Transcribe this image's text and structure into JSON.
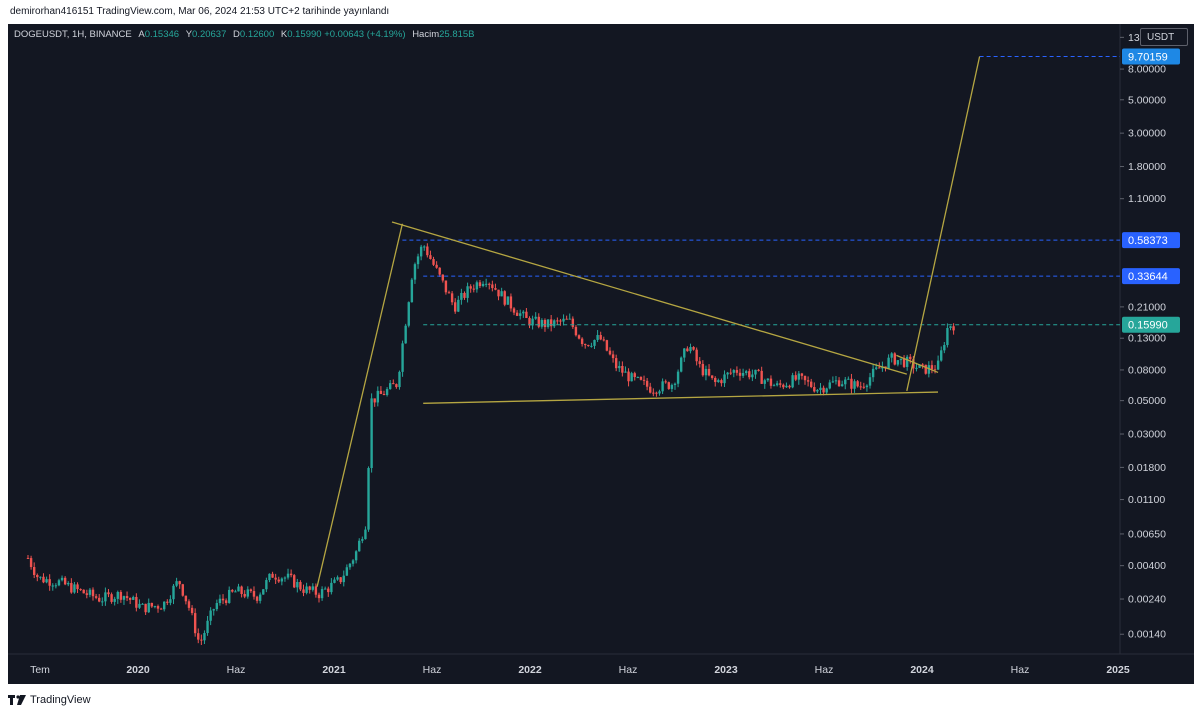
{
  "header": {
    "published_by": "demirorhan416151 TradingView.com, Mar 06, 2024 21:53 UTC+2 tarihinde yayınlandı"
  },
  "legend": {
    "symbol": "DOGEUSDT, 1H, BINANCE",
    "open_label": "A",
    "open": "0.15346",
    "high_label": "Y",
    "high": "0.20637",
    "low_label": "D",
    "low": "0.12600",
    "close_label": "K",
    "close": "0.15990",
    "change": "+0.00643 (+4.19%)",
    "volume_label": "Hacim",
    "volume": "25.815B"
  },
  "currency": "USDT",
  "footer": {
    "brand": "TradingView"
  },
  "colors": {
    "background": "#131722",
    "up": "#26a69a",
    "down": "#ef5350",
    "trendline": "#b5a642",
    "dashed": "#2962ff",
    "grid_text": "#d1d4dc"
  },
  "chart_data": {
    "type": "candlestick",
    "y_scale": "log",
    "ylim": [
      0.0011,
      15
    ],
    "y_ticks": [
      "13.00000",
      "8.00000",
      "5.00000",
      "3.00000",
      "1.80000",
      "1.10000",
      "0.21000",
      "0.13000",
      "0.08000",
      "0.05000",
      "0.03000",
      "0.01800",
      "0.01100",
      "0.00650",
      "0.00400",
      "0.00240",
      "0.00140"
    ],
    "x_ticks": [
      "Tem",
      "2020",
      "Haz",
      "2021",
      "Haz",
      "2022",
      "Haz",
      "2023",
      "Haz",
      "2024",
      "Haz",
      "2025"
    ],
    "x_ticks_bold": [
      "2020",
      "2021",
      "2022",
      "2023",
      "2024",
      "2025"
    ],
    "price_labels": [
      {
        "value": 9.70159,
        "text": "9.70159",
        "color": "#1e88e5"
      },
      {
        "value": 0.58373,
        "text": "0.58373",
        "color": "#2962ff"
      },
      {
        "value": 0.33644,
        "text": "0.33644",
        "color": "#2962ff"
      },
      {
        "value": 0.1599,
        "text": "0.15990",
        "color": "#26a69a"
      }
    ],
    "price_path": [
      [
        0.0,
        0.0045
      ],
      [
        0.01,
        0.0033
      ],
      [
        0.03,
        0.0031
      ],
      [
        0.05,
        0.0027
      ],
      [
        0.07,
        0.0024
      ],
      [
        0.09,
        0.0026
      ],
      [
        0.11,
        0.0021
      ],
      [
        0.13,
        0.0022
      ],
      [
        0.145,
        0.0032
      ],
      [
        0.155,
        0.0021
      ],
      [
        0.165,
        0.0012
      ],
      [
        0.18,
        0.0022
      ],
      [
        0.2,
        0.0027
      ],
      [
        0.22,
        0.0025
      ],
      [
        0.235,
        0.0035
      ],
      [
        0.25,
        0.0033
      ],
      [
        0.265,
        0.0028
      ],
      [
        0.28,
        0.0026
      ],
      [
        0.3,
        0.0032
      ],
      [
        0.315,
        0.0048
      ],
      [
        0.325,
        0.0078
      ],
      [
        0.33,
        0.05
      ],
      [
        0.34,
        0.055
      ],
      [
        0.355,
        0.065
      ],
      [
        0.37,
        0.38
      ],
      [
        0.38,
        0.55
      ],
      [
        0.395,
        0.34
      ],
      [
        0.41,
        0.21
      ],
      [
        0.425,
        0.28
      ],
      [
        0.44,
        0.33
      ],
      [
        0.46,
        0.23
      ],
      [
        0.48,
        0.17
      ],
      [
        0.5,
        0.16
      ],
      [
        0.52,
        0.17
      ],
      [
        0.535,
        0.12
      ],
      [
        0.55,
        0.13
      ],
      [
        0.565,
        0.085
      ],
      [
        0.58,
        0.07
      ],
      [
        0.6,
        0.06
      ],
      [
        0.62,
        0.065
      ],
      [
        0.635,
        0.12
      ],
      [
        0.645,
        0.085
      ],
      [
        0.66,
        0.065
      ],
      [
        0.68,
        0.08
      ],
      [
        0.7,
        0.074
      ],
      [
        0.72,
        0.062
      ],
      [
        0.74,
        0.07
      ],
      [
        0.76,
        0.06
      ],
      [
        0.78,
        0.068
      ],
      [
        0.8,
        0.062
      ],
      [
        0.815,
        0.078
      ],
      [
        0.83,
        0.095
      ],
      [
        0.845,
        0.09
      ],
      [
        0.86,
        0.08
      ],
      [
        0.875,
        0.085
      ],
      [
        0.885,
        0.16
      ],
      [
        0.89,
        0.16
      ]
    ],
    "trendlines": [
      {
        "x1": 0.278,
        "y1": 0.0029,
        "x2": 0.36,
        "y2": 0.75
      },
      {
        "x1": 0.35,
        "y1": 0.77,
        "x2": 0.845,
        "y2": 0.075
      },
      {
        "x1": 0.38,
        "y1": 0.048,
        "x2": 0.875,
        "y2": 0.057
      },
      {
        "x1": 0.845,
        "y1": 0.058,
        "x2": 0.915,
        "y2": 9.70159
      },
      {
        "x1": 0.835,
        "y1": 0.1,
        "x2": 0.875,
        "y2": 0.077
      }
    ],
    "dashed_levels": [
      {
        "value": 9.70159,
        "x_start": 0.915,
        "color": "#2962ff"
      },
      {
        "value": 0.58373,
        "x_start": 0.36,
        "color": "#2962ff"
      },
      {
        "value": 0.33644,
        "x_start": 0.38,
        "color": "#2962ff"
      },
      {
        "value": 0.1599,
        "x_start": 0.38,
        "color": "#26a69a"
      }
    ]
  }
}
